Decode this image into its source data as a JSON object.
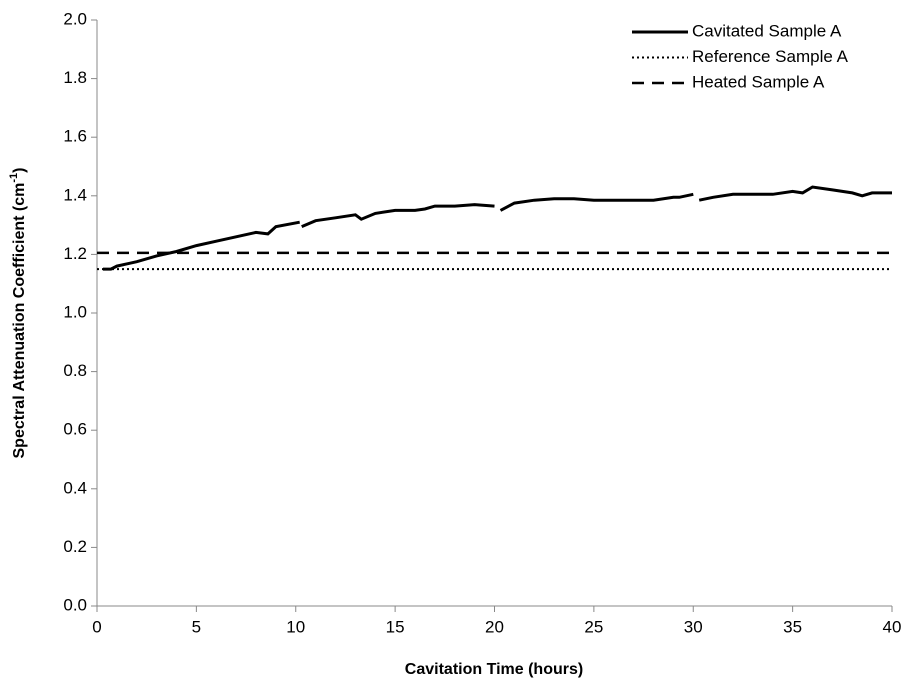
{
  "chart_data": {
    "type": "line",
    "x_label": "Cavitation Time (hours)",
    "y_label": [
      "Spectral Attenuation Coefficient (cm",
      "-1",
      ")"
    ],
    "xlim": [
      0,
      40
    ],
    "xticks": [
      0,
      5,
      10,
      15,
      20,
      25,
      30,
      35,
      40
    ],
    "ylim": [
      0,
      2
    ],
    "yticks": [
      {
        "value": 0,
        "label": "0.0"
      },
      0.2,
      0.4,
      0.6,
      0.8,
      {
        "value": 1,
        "label": "1.0"
      },
      1.2,
      1.4,
      1.6,
      1.8,
      {
        "value": 2,
        "label": "2.0"
      }
    ],
    "grid": false,
    "legend": "upper right",
    "series": [
      {
        "name": "Cavitated Sample A",
        "color": "#000000",
        "style": "solid",
        "x": [
          0.3,
          0.7,
          1,
          2,
          3,
          4,
          5,
          6,
          7,
          8,
          8.6,
          9,
          10.2,
          null,
          10.3,
          11,
          12,
          13,
          13.3,
          14,
          15,
          16,
          16.5,
          17,
          18,
          19,
          20,
          null,
          20.3,
          21,
          22,
          23,
          24,
          25,
          26,
          27,
          28,
          29,
          29.3,
          30,
          null,
          30.3,
          31,
          32,
          33,
          34,
          35,
          35.5,
          36,
          37,
          38,
          38.5,
          39,
          40
        ],
        "values": [
          1.15,
          1.15,
          1.16,
          1.175,
          1.195,
          1.21,
          1.23,
          1.245,
          1.26,
          1.275,
          1.27,
          1.295,
          1.31,
          null,
          1.295,
          1.315,
          1.325,
          1.335,
          1.32,
          1.34,
          1.35,
          1.35,
          1.355,
          1.365,
          1.365,
          1.37,
          1.365,
          null,
          1.35,
          1.375,
          1.385,
          1.39,
          1.39,
          1.385,
          1.385,
          1.385,
          1.385,
          1.395,
          1.395,
          1.405,
          null,
          1.385,
          1.395,
          1.405,
          1.405,
          1.405,
          1.415,
          1.41,
          1.43,
          1.42,
          1.41,
          1.4,
          1.41,
          1.41
        ]
      },
      {
        "name": "Reference Sample A",
        "color": "#000000",
        "style": "dotted",
        "x": [
          0,
          40
        ],
        "values": [
          1.15,
          1.15
        ]
      },
      {
        "name": "Heated Sample A",
        "color": "#000000",
        "style": "dashed",
        "x": [
          0,
          40
        ],
        "values": [
          1.205,
          1.205
        ]
      }
    ]
  }
}
